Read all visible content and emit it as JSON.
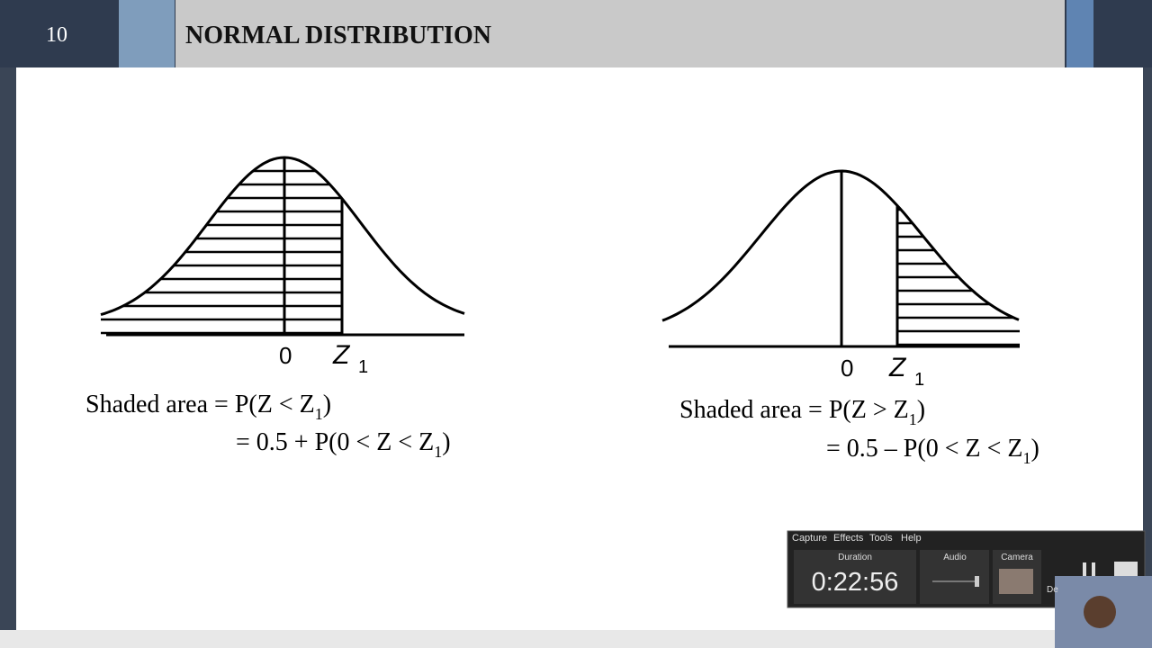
{
  "slide": {
    "number": "10",
    "title": "NORMAL DISTRIBUTION"
  },
  "figures": [
    {
      "origin_label": "0",
      "z_label": "Z",
      "z_sub": "1",
      "line1": {
        "text": "Shaded area = P(Z < Z",
        "sub": "1",
        "tail": ")"
      },
      "line2": {
        "text": "= 0.5 + P(0 < Z < Z",
        "sub": "1",
        "tail": ")"
      }
    },
    {
      "origin_label": "0",
      "z_label": "Z",
      "z_sub": "1",
      "line1": {
        "text": "Shaded area = P(Z > Z",
        "sub": "1",
        "tail": ")"
      },
      "line2": {
        "text": "= 0.5 – P(0 < Z < Z",
        "sub": "1",
        "tail": ")"
      }
    }
  ],
  "recorder": {
    "menu": [
      "Capture",
      "Effects",
      "Tools",
      "Help"
    ],
    "duration_label": "Duration",
    "duration": "0:22:56",
    "audio_label": "Audio",
    "camera_label": "Camera",
    "delete_label": "De"
  }
}
